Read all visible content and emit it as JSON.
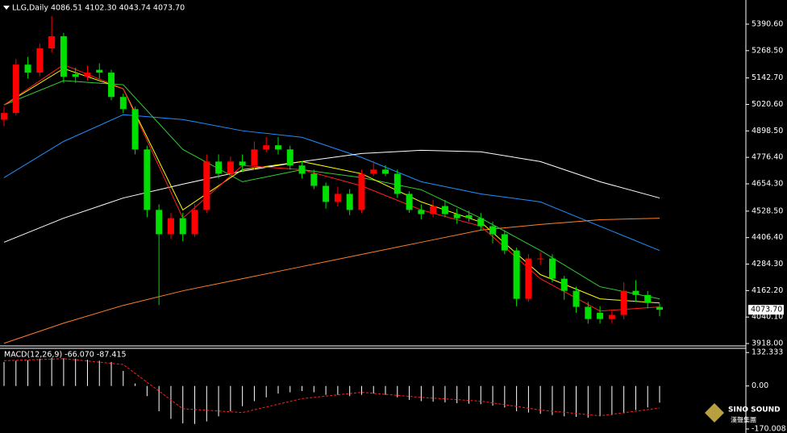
{
  "chart_data": [
    {
      "type": "candlestick",
      "title": "LLG,Daily",
      "subtitle": "4086.51 4102.30 4043.74 4073.70",
      "up_color": "#ff0000",
      "down_color": "#00e000",
      "open": [
        4950,
        4981,
        5204,
        5167,
        5279,
        5335,
        5160,
        5148,
        5180,
        5167,
        5055,
        4999,
        4813,
        4534,
        4422,
        4496,
        4422,
        4534,
        4757,
        4701,
        4757,
        4739,
        4813,
        4832,
        4813,
        4739,
        4701,
        4645,
        4571,
        4608,
        4534,
        4701,
        4720,
        4701,
        4608,
        4534,
        4515,
        4552,
        4515,
        4510,
        4496,
        4459,
        4422,
        4347,
        4124,
        4310,
        4310,
        4217,
        4161,
        4087,
        4060,
        4031,
        4050,
        4161,
        4142,
        4086.51
      ],
      "high": [
        5010,
        5230,
        5240,
        5300,
        5428,
        5350,
        5190,
        5200,
        5210,
        5180,
        5070,
        5010,
        4830,
        4560,
        4520,
        4520,
        4560,
        4790,
        4790,
        4780,
        4790,
        4850,
        4870,
        4870,
        4830,
        4760,
        4720,
        4660,
        4640,
        4630,
        4720,
        4760,
        4740,
        4720,
        4620,
        4560,
        4580,
        4580,
        4540,
        4530,
        4520,
        4480,
        4440,
        4360,
        4330,
        4340,
        4330,
        4230,
        4180,
        4110,
        4090,
        4070,
        4200,
        4210,
        4160,
        4102.3
      ],
      "low": [
        4920,
        4970,
        5140,
        5150,
        5260,
        5120,
        5120,
        5130,
        5140,
        5040,
        4980,
        4790,
        4500,
        4095,
        4400,
        4390,
        4410,
        4520,
        4680,
        4690,
        4710,
        4720,
        4800,
        4790,
        4720,
        4680,
        4630,
        4540,
        4550,
        4510,
        4520,
        4690,
        4690,
        4590,
        4520,
        4490,
        4500,
        4500,
        4470,
        4480,
        4440,
        4380,
        4330,
        4090,
        4110,
        4280,
        4200,
        4120,
        4060,
        4010,
        4010,
        4010,
        4030,
        4110,
        4080,
        4043.74
      ],
      "close": [
        4981,
        5204,
        5167,
        5279,
        5335,
        5148,
        5148,
        5167,
        5167,
        5055,
        4999,
        4813,
        4534,
        4422,
        4496,
        4422,
        4534,
        4757,
        4701,
        4757,
        4739,
        4813,
        4832,
        4813,
        4739,
        4701,
        4645,
        4571,
        4608,
        4534,
        4701,
        4720,
        4701,
        4608,
        4534,
        4515,
        4552,
        4515,
        4496,
        4496,
        4459,
        4422,
        4347,
        4124,
        4310,
        4310,
        4217,
        4161,
        4087,
        4031,
        4031,
        4050,
        4161,
        4142,
        4105,
        4073.7
      ],
      "ma_index": [
        0,
        5,
        10,
        15,
        20,
        25,
        30,
        35,
        40,
        45,
        50,
        55
      ],
      "series": [
        {
          "color": "#1e90ff",
          "values": [
            4683,
            4850,
            4973,
            4951,
            4899,
            4869,
            4776,
            4664,
            4608,
            4571,
            4459,
            4347
          ]
        },
        {
          "color": "#ffffff",
          "values": [
            4385,
            4496,
            4589,
            4653,
            4713,
            4757,
            4794,
            4809,
            4802,
            4757,
            4664,
            4589
          ]
        },
        {
          "color": "#ff7f27",
          "values": [
            3919,
            4012,
            4094,
            4161,
            4217,
            4273,
            4329,
            4385,
            4441,
            4467,
            4489,
            4496
          ]
        },
        {
          "color": "#32cd32",
          "values": [
            5018,
            5130,
            5111,
            4813,
            4664,
            4720,
            4683,
            4627,
            4496,
            4347,
            4180,
            4124
          ]
        },
        {
          "color": "#ffff00",
          "values": [
            5018,
            5186,
            5093,
            4534,
            4720,
            4757,
            4701,
            4571,
            4478,
            4236,
            4124,
            4105
          ]
        },
        {
          "color": "#ff2020",
          "values": [
            5018,
            5204,
            5093,
            4496,
            4739,
            4720,
            4645,
            4534,
            4459,
            4217,
            4068,
            4087
          ]
        }
      ],
      "current_price": {
        "value": 4073.7,
        "label": "4073.70"
      },
      "ylim": [
        3907,
        5502
      ],
      "yticks": [
        {
          "value": 5390.6,
          "label": "5390.60"
        },
        {
          "value": 5268.5,
          "label": "5268.50"
        },
        {
          "value": 5142.7,
          "label": "5142.70"
        },
        {
          "value": 5020.6,
          "label": "5020.60"
        },
        {
          "value": 4898.5,
          "label": "4898.50"
        },
        {
          "value": 4776.4,
          "label": "4776.40"
        },
        {
          "value": 4654.3,
          "label": "4654.30"
        },
        {
          "value": 4528.5,
          "label": "4528.50"
        },
        {
          "value": 4406.4,
          "label": "4406.40"
        },
        {
          "value": 4284.3,
          "label": "4284.30"
        },
        {
          "value": 4162.2,
          "label": "4162.20"
        },
        {
          "value": 4040.1,
          "label": "4040.10"
        },
        {
          "value": 3918,
          "label": "3918.00"
        }
      ]
    },
    {
      "type": "macd",
      "title": "MACD(12,26,9) -66.070 -87.415",
      "color": "#ffffff",
      "values": [
        95,
        100,
        102,
        108,
        112,
        110,
        108,
        104,
        100,
        95,
        60,
        10,
        -40,
        -100,
        -130,
        -148,
        -150,
        -140,
        -120,
        -100,
        -80,
        -60,
        -45,
        -30,
        -25,
        -20,
        -25,
        -35,
        -35,
        -40,
        -35,
        -30,
        -35,
        -45,
        -55,
        -60,
        -62,
        -65,
        -68,
        -70,
        -72,
        -78,
        -85,
        -100,
        -105,
        -110,
        -115,
        -120,
        -122,
        -125,
        -120,
        -115,
        -108,
        -95,
        -85,
        -66.07
      ],
      "signal_index": [
        0,
        5,
        10,
        15,
        20,
        25,
        30,
        35,
        40,
        45,
        50,
        55
      ],
      "signal": {
        "color": "#ff2020",
        "values": [
          100,
          108,
          85,
          -90,
          -105,
          -50,
          -25,
          -45,
          -60,
          -95,
          -118,
          -87.415
        ]
      },
      "ylim": [
        -186,
        149
      ],
      "yticks": [
        132.333,
        {
          "value": 0,
          "label": "0.00"
        },
        -170.008
      ]
    }
  ],
  "watermark": {
    "name": "SINO SOUND",
    "subtitle": "漢聲集團"
  }
}
